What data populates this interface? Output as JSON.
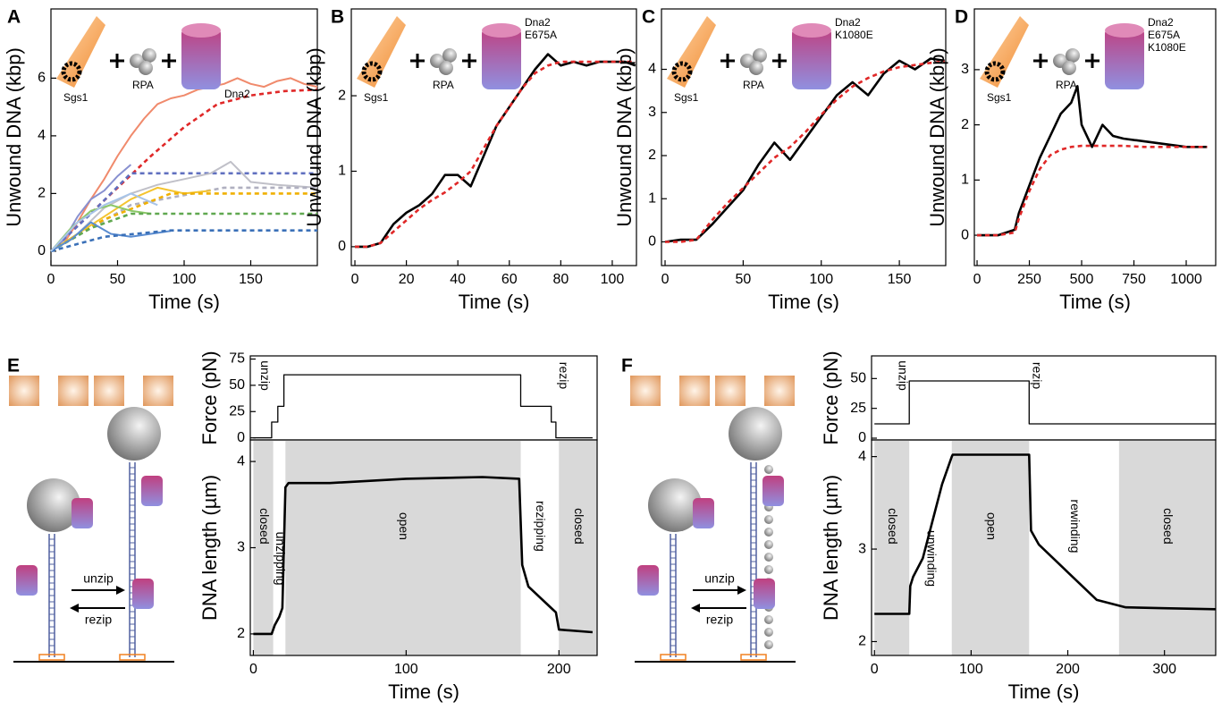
{
  "chart_data": [
    {
      "panel": "A",
      "type": "line",
      "xlabel": "Time (s)",
      "ylabel": "Unwound DNA (kbp)",
      "xlim": [
        0,
        200
      ],
      "ylim": [
        -0.5,
        8.4
      ],
      "xticks": [
        0,
        50,
        100,
        150
      ],
      "yticks": [
        0,
        2,
        4,
        6
      ],
      "icons": {
        "helicase": "Sgs1",
        "rpa": "RPA",
        "nuclease": [
          "Dna2"
        ]
      },
      "series": [
        {
          "color": "#f08a6c",
          "style": "solid",
          "x": [
            0,
            10,
            20,
            30,
            40,
            50,
            60,
            70,
            80,
            90,
            100,
            110,
            120,
            130,
            140,
            150,
            160,
            170,
            180,
            190,
            200
          ],
          "values": [
            0,
            0.3,
            1,
            1.8,
            2.5,
            3.3,
            4,
            4.6,
            5.1,
            5.3,
            5.4,
            5.6,
            5.7,
            5.8,
            6,
            5.8,
            5.7,
            5.9,
            6,
            5.8,
            5.7
          ]
        },
        {
          "color": "#e02828",
          "style": "dashed",
          "x": [
            0,
            25,
            50,
            75,
            100,
            125,
            150,
            175,
            200
          ],
          "values": [
            0,
            1.1,
            2.2,
            3.3,
            4.3,
            5.1,
            5.4,
            5.55,
            5.6
          ]
        },
        {
          "color": "#8890d0",
          "style": "solid",
          "x": [
            0,
            10,
            20,
            30,
            40,
            50,
            60
          ],
          "values": [
            0,
            0.4,
            1.2,
            1.8,
            2.1,
            2.6,
            3
          ]
        },
        {
          "color": "#6070c0",
          "style": "dashed",
          "x": [
            0,
            30,
            60,
            200
          ],
          "values": [
            0,
            1.3,
            2.7,
            2.7
          ]
        },
        {
          "color": "#c0c0c8",
          "style": "solid",
          "x": [
            0,
            20,
            40,
            60,
            80,
            100,
            120,
            135,
            150,
            170,
            200
          ],
          "values": [
            0,
            0.6,
            1.5,
            2,
            2.3,
            2.5,
            2.7,
            3.1,
            2.4,
            2.3,
            2.2
          ]
        },
        {
          "color": "#b0b0c0",
          "style": "dashed",
          "x": [
            0,
            60,
            130,
            200
          ],
          "values": [
            0,
            1.6,
            2.2,
            2.2
          ]
        },
        {
          "color": "#f4c430",
          "style": "solid",
          "x": [
            0,
            20,
            40,
            60,
            80,
            100,
            120
          ],
          "values": [
            0,
            0.6,
            1.2,
            1.8,
            2.2,
            2,
            2.1
          ]
        },
        {
          "color": "#f0b000",
          "style": "dashed",
          "x": [
            0,
            40,
            90,
            200
          ],
          "values": [
            0,
            1.1,
            2,
            2
          ]
        },
        {
          "color": "#8cc868",
          "style": "solid",
          "x": [
            0,
            15,
            30,
            45,
            60,
            75
          ],
          "values": [
            0,
            0.8,
            1.4,
            1.6,
            1.4,
            1.3
          ]
        },
        {
          "color": "#60a850",
          "style": "dashed",
          "x": [
            0,
            30,
            60,
            200
          ],
          "values": [
            0,
            0.8,
            1.3,
            1.3
          ]
        },
        {
          "color": "#5a8cd0",
          "style": "solid",
          "x": [
            0,
            15,
            30,
            45,
            60,
            75,
            90
          ],
          "values": [
            0,
            0.4,
            1,
            0.6,
            0.5,
            0.6,
            0.7
          ]
        },
        {
          "color": "#3a70b8",
          "style": "dashed",
          "x": [
            0,
            40,
            90,
            200
          ],
          "values": [
            0,
            0.5,
            0.72,
            0.72
          ]
        },
        {
          "color": "#a8c4e8",
          "style": "solid",
          "x": [
            0,
            20,
            40,
            60,
            80
          ],
          "values": [
            0,
            1,
            1.6,
            2,
            1.6
          ]
        }
      ]
    },
    {
      "panel": "B",
      "type": "line",
      "xlabel": "Time (s)",
      "ylabel": "Unwound DNA (kbp)",
      "xlim": [
        -1.4,
        109.4
      ],
      "ylim": [
        -0.25,
        3.15
      ],
      "xticks": [
        0,
        20,
        40,
        60,
        80,
        100
      ],
      "yticks": [
        0,
        1,
        2
      ],
      "icons": {
        "helicase": "Sgs1",
        "rpa": "RPA",
        "nuclease": [
          "Dna2",
          "E675A"
        ]
      },
      "series": [
        {
          "color": "#000000",
          "style": "solid",
          "x": [
            0,
            5,
            10,
            15,
            20,
            25,
            30,
            35,
            40,
            45,
            50,
            55,
            60,
            65,
            70,
            75,
            80,
            85,
            90,
            95,
            100,
            105,
            109
          ],
          "values": [
            0,
            0,
            0.05,
            0.3,
            0.45,
            0.55,
            0.7,
            0.95,
            0.95,
            0.8,
            1.2,
            1.6,
            1.85,
            2.1,
            2.35,
            2.55,
            2.4,
            2.45,
            2.4,
            2.45,
            2.45,
            2.45,
            2.4
          ]
        },
        {
          "color": "#e02828",
          "style": "dashed",
          "x": [
            0,
            5,
            10,
            15,
            20,
            25,
            30,
            35,
            40,
            45,
            50,
            55,
            60,
            65,
            70,
            75,
            80,
            90,
            100,
            109
          ],
          "values": [
            0,
            0,
            0.05,
            0.2,
            0.35,
            0.5,
            0.62,
            0.72,
            0.85,
            1,
            1.3,
            1.6,
            1.85,
            2.1,
            2.3,
            2.4,
            2.45,
            2.45,
            2.45,
            2.45
          ]
        }
      ]
    },
    {
      "panel": "C",
      "type": "line",
      "xlabel": "Time (s)",
      "ylabel": "Unwound DNA (kbp)",
      "xlim": [
        -2.3,
        179.7
      ],
      "ylim": [
        -0.55,
        5.4
      ],
      "xticks": [
        0,
        50,
        100,
        150
      ],
      "yticks": [
        0,
        1,
        2,
        3,
        4
      ],
      "icons": {
        "helicase": "Sgs1",
        "rpa": "RPA",
        "nuclease": [
          "Dna2",
          "K1080E"
        ]
      },
      "series": [
        {
          "color": "#000000",
          "style": "solid",
          "x": [
            0,
            10,
            20,
            30,
            40,
            50,
            60,
            70,
            80,
            90,
            100,
            110,
            120,
            130,
            140,
            150,
            160,
            170,
            179
          ],
          "values": [
            0,
            0.05,
            0.05,
            0.4,
            0.8,
            1.2,
            1.8,
            2.3,
            1.9,
            2.4,
            2.9,
            3.4,
            3.7,
            3.4,
            3.9,
            4.2,
            4,
            4.25,
            4.2
          ]
        },
        {
          "color": "#e02828",
          "style": "dashed",
          "x": [
            0,
            10,
            20,
            30,
            40,
            50,
            60,
            70,
            80,
            90,
            100,
            110,
            120,
            130,
            140,
            150,
            160,
            170,
            179
          ],
          "values": [
            0,
            0,
            0.05,
            0.5,
            0.9,
            1.25,
            1.6,
            1.95,
            2.2,
            2.55,
            2.95,
            3.3,
            3.6,
            3.8,
            3.95,
            4.05,
            4.1,
            4.15,
            4.18
          ]
        }
      ]
    },
    {
      "panel": "D",
      "type": "line",
      "xlabel": "Time (s)",
      "ylabel": "Unwound DNA (kbp)",
      "xlim": [
        -13,
        1141
      ],
      "ylim": [
        -0.55,
        4.1
      ],
      "xticks": [
        0,
        250,
        500,
        750,
        1000
      ],
      "yticks": [
        0,
        1,
        2,
        3
      ],
      "icons": {
        "helicase": "Sgs1",
        "rpa": "RPA",
        "nuclease": [
          "Dna2",
          "E675A",
          "K1080E"
        ]
      },
      "series": [
        {
          "color": "#000000",
          "style": "solid",
          "x": [
            0,
            100,
            180,
            200,
            250,
            300,
            350,
            400,
            450,
            480,
            500,
            550,
            600,
            650,
            700,
            800,
            900,
            1000,
            1100
          ],
          "values": [
            0,
            0,
            0.1,
            0.4,
            0.9,
            1.4,
            1.8,
            2.2,
            2.4,
            2.7,
            2,
            1.6,
            2,
            1.8,
            1.75,
            1.7,
            1.65,
            1.6,
            1.6
          ]
        },
        {
          "color": "#e02828",
          "style": "dashed",
          "x": [
            0,
            100,
            180,
            200,
            250,
            300,
            350,
            400,
            450,
            500,
            600,
            700,
            800,
            900,
            1000,
            1100
          ],
          "values": [
            0,
            0,
            0.05,
            0.3,
            0.8,
            1.2,
            1.45,
            1.55,
            1.6,
            1.62,
            1.62,
            1.62,
            1.6,
            1.6,
            1.6,
            1.6
          ]
        }
      ]
    },
    {
      "panel": "E",
      "type": "step",
      "ylabel": "Force (pN)",
      "xlim": [
        -2,
        225
      ],
      "ylim": [
        -2,
        78
      ],
      "yticks": [
        0,
        25,
        50,
        75
      ],
      "annotations": [
        "unzip",
        "rezip"
      ],
      "series": [
        {
          "color": "#000000",
          "style": "thin",
          "x": [
            0,
            12,
            12,
            16,
            16,
            20,
            20,
            175,
            175,
            195,
            195,
            198,
            198,
            222
          ],
          "values": [
            0,
            0,
            15,
            15,
            30,
            30,
            60,
            60,
            30,
            30,
            15,
            15,
            0,
            0
          ]
        }
      ]
    },
    {
      "type": "line",
      "xlabel": "Time (s)",
      "ylabel": "DNA length (µm)",
      "xlim": [
        -2,
        225
      ],
      "ylim": [
        1.75,
        4.25
      ],
      "xticks": [
        0,
        100,
        200
      ],
      "yticks": [
        2,
        3,
        4
      ],
      "regions": [
        {
          "label": "closed",
          "start": 0,
          "end": 13,
          "shaded": true
        },
        {
          "label": "unzipping",
          "start": 13,
          "end": 21,
          "shaded": false
        },
        {
          "label": "open",
          "start": 21,
          "end": 175,
          "shaded": true
        },
        {
          "label": "rezipping",
          "start": 175,
          "end": 200,
          "shaded": false
        },
        {
          "label": "closed",
          "start": 200,
          "end": 225,
          "shaded": true
        }
      ],
      "series": [
        {
          "color": "#000000",
          "style": "solid",
          "x": [
            0,
            12,
            14,
            17,
            19,
            21,
            23,
            50,
            100,
            150,
            174,
            176,
            180,
            195,
            198,
            200,
            222
          ],
          "values": [
            2,
            2,
            2.1,
            2.2,
            2.3,
            3.7,
            3.75,
            3.75,
            3.8,
            3.82,
            3.8,
            2.8,
            2.55,
            2.3,
            2.25,
            2.05,
            2.02
          ]
        }
      ]
    },
    {
      "panel": "F",
      "type": "step",
      "ylabel": "Force (pN)",
      "xlim": [
        -3,
        353
      ],
      "ylim": [
        -1.5,
        69
      ],
      "yticks": [
        0,
        25,
        50
      ],
      "annotations": [
        "unzip",
        "rezip"
      ],
      "series": [
        {
          "color": "#000000",
          "style": "thin",
          "x": [
            0,
            36,
            36,
            160,
            160,
            353
          ],
          "values": [
            12,
            12,
            48,
            48,
            12,
            12
          ]
        }
      ]
    },
    {
      "type": "line",
      "xlabel": "Time (s)",
      "ylabel": "DNA length (µm)",
      "xlim": [
        -3,
        353
      ],
      "ylim": [
        1.85,
        4.18
      ],
      "xticks": [
        0,
        100,
        200,
        300
      ],
      "yticks": [
        2,
        3,
        4
      ],
      "regions": [
        {
          "label": "closed",
          "start": 0,
          "end": 36,
          "shaded": true
        },
        {
          "label": "unwinding",
          "start": 36,
          "end": 80,
          "shaded": false
        },
        {
          "label": "open",
          "start": 80,
          "end": 160,
          "shaded": true
        },
        {
          "label": "rewinding",
          "start": 160,
          "end": 253,
          "shaded": false
        },
        {
          "label": "closed",
          "start": 253,
          "end": 353,
          "shaded": true
        }
      ],
      "series": [
        {
          "color": "#000000",
          "style": "solid",
          "x": [
            0,
            36,
            37,
            40,
            50,
            60,
            70,
            80,
            81,
            160,
            162,
            170,
            200,
            230,
            260,
            300,
            353
          ],
          "values": [
            2.3,
            2.3,
            2.6,
            2.7,
            2.9,
            3.3,
            3.7,
            4,
            4.02,
            4.02,
            3.2,
            3.05,
            2.75,
            2.45,
            2.37,
            2.36,
            2.35
          ]
        }
      ]
    }
  ],
  "diagrams": [
    {
      "labels": [
        "unzip",
        "rezip"
      ]
    },
    {
      "labels": [
        "unzip",
        "rezip"
      ]
    }
  ]
}
